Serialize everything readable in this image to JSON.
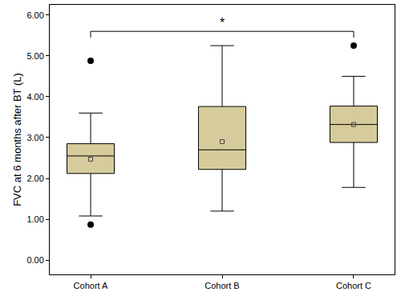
{
  "chart_data": {
    "type": "box",
    "categories": [
      "Cohort A",
      "Cohort B",
      "Cohort C"
    ],
    "lowerfence": [
      1.08,
      1.2,
      1.78
    ],
    "q1": [
      2.12,
      2.22,
      2.88
    ],
    "median": [
      2.55,
      2.7,
      3.32
    ],
    "q3": [
      2.85,
      3.76,
      3.77
    ],
    "upperfence": [
      3.6,
      5.25,
      4.5
    ],
    "mean": [
      2.47,
      2.9,
      3.32
    ],
    "outliers": [
      [
        0.87,
        4.88
      ],
      [],
      [
        5.25
      ]
    ],
    "color": "#d6cb9b",
    "ylabel": "FVC at 6 months after BT (L)",
    "ylim": [
      -0.35,
      6.25
    ],
    "yticks": [
      {
        "value": 0,
        "label": "0.00"
      },
      {
        "value": 1,
        "label": "1.00"
      },
      {
        "value": 2,
        "label": "2.00"
      },
      {
        "value": 3,
        "label": "3.00"
      },
      {
        "value": 4,
        "label": "4.00"
      },
      {
        "value": 5,
        "label": "5.00"
      },
      {
        "value": 6,
        "label": "6.00"
      }
    ],
    "grid": false,
    "annotations": [
      {
        "from": "Cohort A",
        "to": "Cohort C",
        "y": 5.6,
        "text": "*"
      }
    ]
  }
}
